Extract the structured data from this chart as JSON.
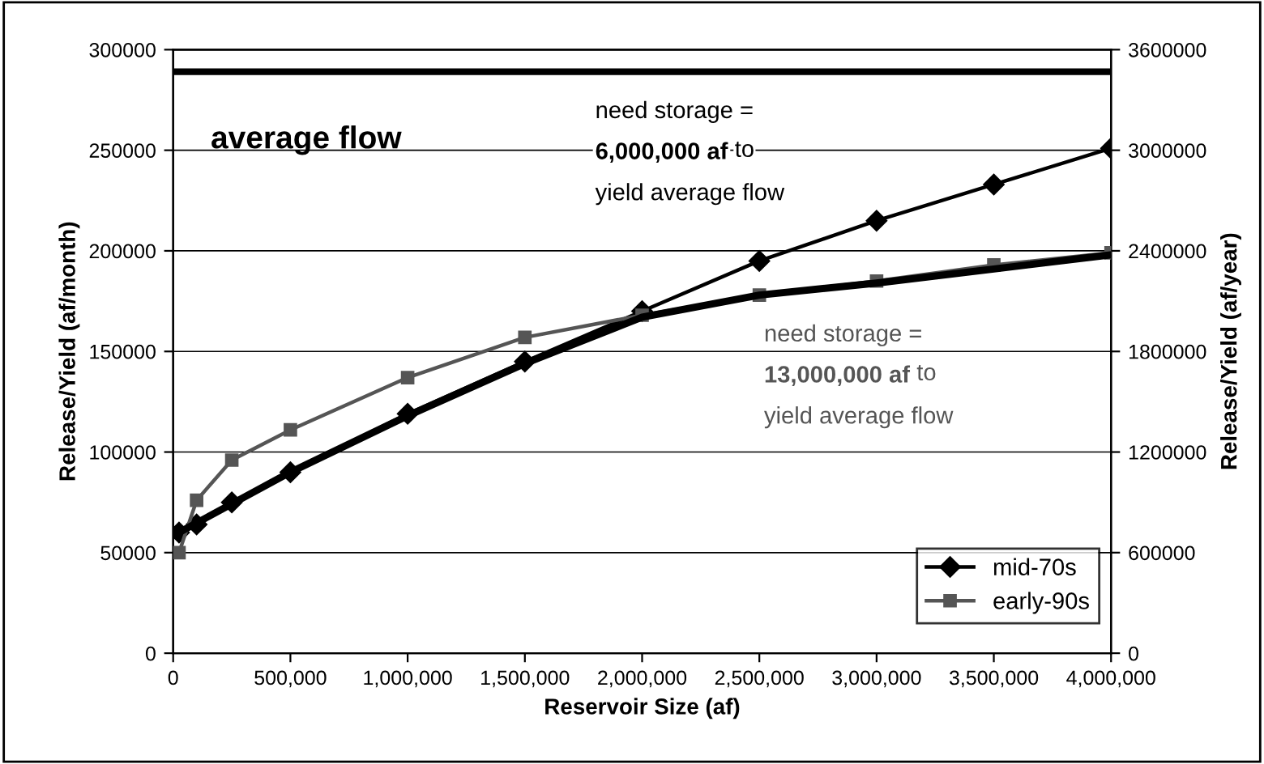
{
  "chart_data": {
    "type": "line",
    "xlabel": "Reservoir Size (af)",
    "ylabel": "Release/Yield (af/month)",
    "y2label": "Release/Yield (af/year)",
    "xlim": [
      0,
      4000000
    ],
    "xticks": [
      {
        "value": 0,
        "label": "0"
      },
      {
        "value": 500000,
        "label": "500,000"
      },
      {
        "value": 1000000,
        "label": "1,000,000"
      },
      {
        "value": 1500000,
        "label": "1,500,000"
      },
      {
        "value": 2000000,
        "label": "2,000,000"
      },
      {
        "value": 2500000,
        "label": "2,500,000"
      },
      {
        "value": 3000000,
        "label": "3,000,000"
      },
      {
        "value": 3500000,
        "label": "3,500,000"
      },
      {
        "value": 4000000,
        "label": "4,000,000"
      }
    ],
    "ylim": [
      0,
      300000
    ],
    "yticks": [
      0,
      50000,
      100000,
      150000,
      200000,
      250000,
      300000
    ],
    "y2lim": [
      0,
      3600000
    ],
    "y2ticks": [
      0,
      600000,
      1200000,
      1800000,
      2400000,
      3000000,
      3600000
    ],
    "grid": "y",
    "legend": "bottom right",
    "series": [
      {
        "name": "mid-70s",
        "color": "#000000",
        "marker": "diamond",
        "x": [
          25000,
          100000,
          250000,
          500000,
          1000000,
          1500000,
          2000000,
          2500000,
          3000000,
          3500000,
          4000000
        ],
        "values": [
          60000,
          64000,
          75000,
          90000,
          119000,
          145000,
          170000,
          195000,
          215000,
          233000,
          251000
        ]
      },
      {
        "name": "early-90s",
        "color": "#555555",
        "marker": "square",
        "x": [
          25000,
          100000,
          250000,
          500000,
          1000000,
          1500000,
          2000000,
          2500000,
          3000000,
          3500000,
          4000000
        ],
        "values": [
          50000,
          76000,
          96000,
          111000,
          137000,
          157000,
          168000,
          178000,
          185000,
          193000,
          199000
        ]
      },
      {
        "color": "#000000",
        "marker": "none",
        "x": [
          25000,
          500000,
          1000000,
          1500000,
          2000000,
          2500000,
          3000000,
          3500000,
          4000000
        ],
        "values": [
          60000,
          90000,
          118000,
          144000,
          167000,
          178000,
          184000,
          191000,
          198000
        ]
      }
    ],
    "ref_lines": [
      {
        "axis": "y",
        "value": 289000,
        "label": "average flow",
        "color": "#000000"
      }
    ],
    "annotations": [
      "need storage =\n6,000,000 af to\nyield average flow",
      "need storage =\n13,000,000 af to\nyield average flow"
    ]
  }
}
